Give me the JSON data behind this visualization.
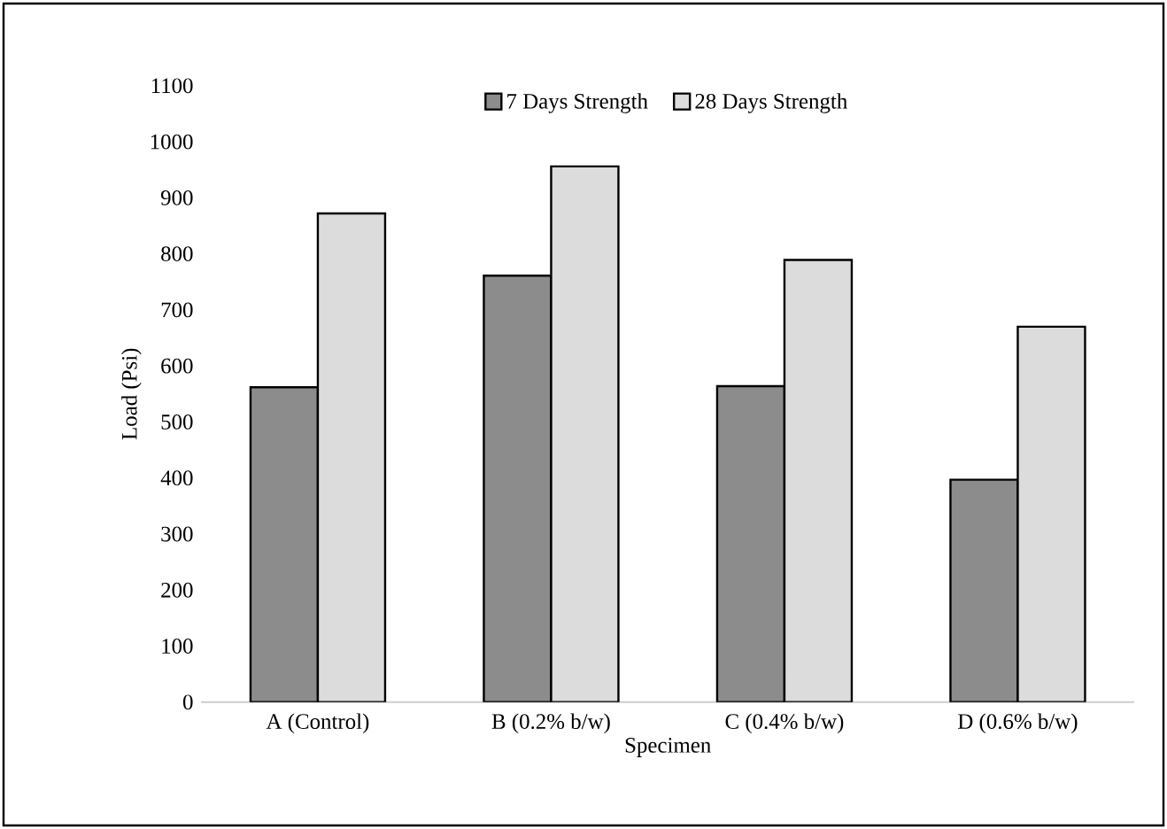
{
  "chart_data": {
    "type": "bar",
    "xlabel": "Specimen",
    "ylabel": "Load (Psi)",
    "categories": [
      "A (Control)",
      "B (0.2% b/w)",
      "C (0.4% b/w)",
      "D (0.6% b/w)"
    ],
    "series": [
      {
        "name": "7 Days Strength",
        "color": "#8c8c8c",
        "values": [
          562,
          761,
          564,
          397
        ]
      },
      {
        "name": "28 Days Strength",
        "color": "#dcdcdc",
        "values": [
          872,
          956,
          789,
          670
        ]
      }
    ],
    "ylim": [
      0,
      1100
    ],
    "yticks": [
      0,
      100,
      200,
      300,
      400,
      500,
      600,
      700,
      800,
      900,
      1000,
      1100
    ],
    "legend": "top"
  }
}
